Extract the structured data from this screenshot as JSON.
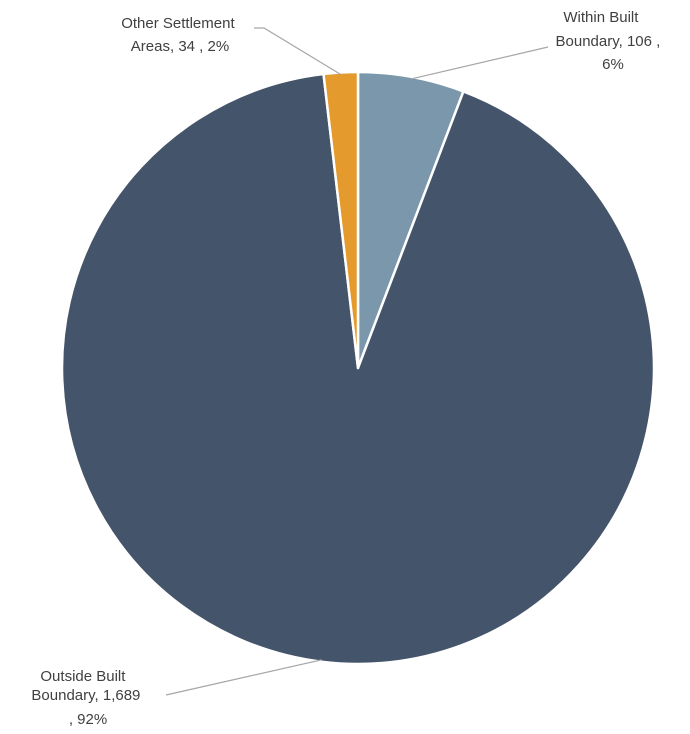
{
  "chart_data": {
    "type": "pie",
    "title": "",
    "slices": [
      {
        "name": "Within Built Boundary",
        "value": 106,
        "percent": "6%",
        "color": "#7a97ab",
        "label_lines": [
          "Within Built",
          "Boundary,  106 ,",
          "6%"
        ]
      },
      {
        "name": "Outside Built Boundary",
        "value": 1689,
        "value_text": "1,689",
        "percent": "92%",
        "color": "#44546a",
        "label_lines": [
          "Outside Built",
          "Boundary,  1,689",
          ", 92%"
        ]
      },
      {
        "name": "Other Settlement Areas",
        "value": 34,
        "percent": "2%",
        "color": "#e59a2e",
        "label_lines": [
          "Other Settlement",
          "Areas,  34 , 2%"
        ]
      }
    ],
    "start_angle": "12 o'clock",
    "direction": "clockwise",
    "legend": "none",
    "slice_border_color": "#ffffff",
    "leader_line_color": "#a6a6a6"
  }
}
